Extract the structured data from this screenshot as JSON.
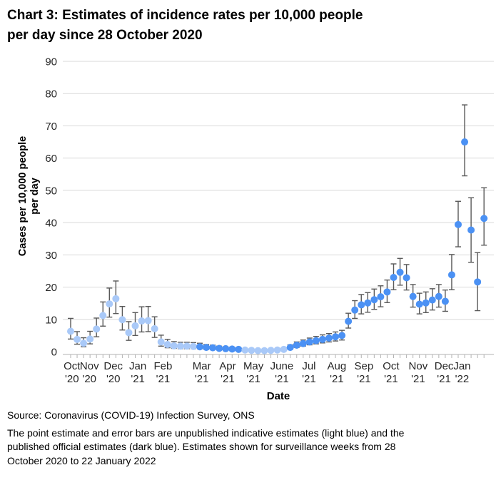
{
  "title_lines": [
    "Chart 3: Estimates of incidence rates per 10,000 people",
    "per day since 28 October 2020"
  ],
  "footer": {
    "source": "Source: Coronavirus (COVID-19) Infection Survey, ONS",
    "note_lines": [
      "The point estimate and error bars are unpublished indicative estimates (light blue) and the",
      "published official estimates (dark blue). Estimates shown for surveillance weeks from 28",
      "October 2020 to 22 January 2022"
    ]
  },
  "chart_data": {
    "type": "scatter",
    "title": "Chart 3: Estimates of incidence rates per 10,000 people per day since 28 October 2020",
    "xlabel": "Date",
    "ylabel": "Cases per 10,000 people per day",
    "ylabel_lines": [
      "Cases per 10,000 people",
      "per day"
    ],
    "ylim": [
      0,
      90
    ],
    "yticks": [
      0,
      10,
      20,
      30,
      40,
      50,
      60,
      70,
      80,
      90
    ],
    "grid": true,
    "x_unit": "surveillance week (weekly points, 28 October 2020 to 22 January 2022)",
    "series_codes": {
      "L": "light blue — unpublished indicative estimates",
      "D": "dark blue — published official estimates"
    },
    "colors": {
      "light_blue": "#a9c9f8",
      "dark_blue": "#4b91f4",
      "error_bar": "#595959",
      "gridline": "#d9d9d9",
      "axis": "#b3b3b3",
      "tick_text": "#262626",
      "text": "#000000"
    },
    "x_axis_months": [
      {
        "label": "Oct",
        "year": "'20",
        "week": 0.2
      },
      {
        "label": "Nov",
        "year": "'20",
        "week": 2.9
      },
      {
        "label": "Dec",
        "year": "'20",
        "week": 6.6
      },
      {
        "label": "Jan",
        "year": "'21",
        "week": 10.4
      },
      {
        "label": "Feb",
        "year": "'21",
        "week": 14.3
      },
      {
        "label": "Mar",
        "year": "'21",
        "week": 20.3
      },
      {
        "label": "Apr",
        "year": "'21",
        "week": 24.3
      },
      {
        "label": "May",
        "year": "'21",
        "week": 28.3
      },
      {
        "label": "June",
        "year": "'21",
        "week": 32.7
      },
      {
        "label": "Jul",
        "year": "'21",
        "week": 36.9
      },
      {
        "label": "Aug",
        "year": "'21",
        "week": 41.2
      },
      {
        "label": "Sep",
        "year": "'21",
        "week": 45.4
      },
      {
        "label": "Oct",
        "year": "'21",
        "week": 49.6
      },
      {
        "label": "Nov",
        "year": "'21",
        "week": 53.8
      },
      {
        "label": "Dec",
        "year": "'21",
        "week": 57.8
      },
      {
        "label": "Jan",
        "year": "'22",
        "week": 60.6
      }
    ],
    "point_format": [
      "value",
      "ci_low",
      "ci_high",
      "series"
    ],
    "points": [
      [
        6.3,
        3.9,
        10.3,
        "L"
      ],
      [
        3.8,
        2.3,
        6.2,
        "L"
      ],
      [
        2.6,
        1.5,
        4.3,
        "L"
      ],
      [
        3.9,
        2.4,
        6.3,
        "L"
      ],
      [
        7.0,
        4.6,
        10.4,
        "L"
      ],
      [
        11.2,
        7.9,
        15.4,
        "L"
      ],
      [
        14.8,
        10.7,
        19.7,
        "L"
      ],
      [
        16.4,
        11.8,
        21.9,
        "L"
      ],
      [
        9.9,
        6.7,
        14.0,
        "L"
      ],
      [
        5.9,
        3.5,
        9.3,
        "L"
      ],
      [
        8.0,
        5.0,
        12.1,
        "L"
      ],
      [
        9.5,
        6.1,
        13.9,
        "L"
      ],
      [
        9.6,
        6.2,
        14.0,
        "L"
      ],
      [
        7.1,
        4.4,
        10.8,
        "L"
      ],
      [
        3.0,
        1.7,
        5.1,
        "L"
      ],
      [
        2.2,
        1.2,
        3.8,
        "L"
      ],
      [
        1.8,
        1.0,
        3.1,
        "L"
      ],
      [
        1.7,
        0.9,
        2.9,
        "L"
      ],
      [
        1.7,
        0.9,
        2.9,
        "L"
      ],
      [
        1.6,
        0.9,
        2.8,
        "L"
      ],
      [
        1.5,
        0.9,
        2.6,
        "D"
      ],
      [
        1.3,
        0.7,
        2.2,
        "D"
      ],
      [
        1.2,
        0.7,
        2.0,
        "D"
      ],
      [
        1.0,
        0.6,
        1.7,
        "D"
      ],
      [
        0.9,
        0.5,
        1.5,
        "D"
      ],
      [
        0.8,
        0.4,
        1.4,
        "D"
      ],
      [
        0.7,
        0.4,
        1.2,
        "D"
      ],
      [
        0.5,
        0.3,
        0.9,
        "L"
      ],
      [
        0.4,
        0.2,
        0.7,
        "L"
      ],
      [
        0.3,
        0.1,
        0.6,
        "L"
      ],
      [
        0.3,
        0.1,
        0.6,
        "L"
      ],
      [
        0.4,
        0.2,
        0.7,
        "L"
      ],
      [
        0.5,
        0.3,
        0.9,
        "L"
      ],
      [
        0.7,
        0.4,
        1.2,
        "L"
      ],
      [
        1.3,
        0.8,
        2.1,
        "D"
      ],
      [
        2.0,
        1.3,
        3.0,
        "D"
      ],
      [
        2.5,
        1.7,
        3.6,
        "D"
      ],
      [
        3.0,
        2.1,
        4.2,
        "D"
      ],
      [
        3.4,
        2.4,
        4.7,
        "D"
      ],
      [
        3.8,
        2.7,
        5.2,
        "D"
      ],
      [
        4.2,
        3.0,
        5.6,
        "D"
      ],
      [
        4.6,
        3.3,
        6.1,
        "D"
      ],
      [
        5.0,
        3.6,
        6.6,
        "D"
      ],
      [
        9.4,
        7.3,
        11.9,
        "D"
      ],
      [
        12.9,
        10.3,
        15.8,
        "D"
      ],
      [
        14.5,
        11.7,
        17.7,
        "D"
      ],
      [
        15.1,
        12.2,
        18.3,
        "D"
      ],
      [
        16.1,
        13.1,
        19.4,
        "D"
      ],
      [
        17.0,
        13.9,
        20.4,
        "D"
      ],
      [
        18.5,
        15.2,
        22.2,
        "D"
      ],
      [
        23.0,
        19.2,
        27.2,
        "D"
      ],
      [
        24.6,
        20.6,
        28.9,
        "D"
      ],
      [
        22.9,
        19.1,
        27.0,
        "D"
      ],
      [
        17.1,
        13.8,
        20.8,
        "D"
      ],
      [
        14.7,
        11.7,
        18.1,
        "D"
      ],
      [
        15.1,
        12.1,
        18.5,
        "D"
      ],
      [
        16.0,
        12.9,
        19.5,
        "D"
      ],
      [
        17.1,
        13.8,
        20.8,
        "D"
      ],
      [
        15.6,
        12.5,
        19.1,
        "D"
      ],
      [
        23.8,
        19.2,
        30.1,
        "D"
      ],
      [
        39.4,
        32.5,
        46.6,
        "D"
      ],
      [
        65.0,
        54.5,
        76.5,
        "D"
      ],
      [
        37.7,
        27.7,
        47.7,
        "D"
      ],
      [
        21.6,
        12.7,
        30.7,
        "D"
      ],
      [
        41.3,
        33.0,
        50.8,
        "D"
      ]
    ]
  }
}
